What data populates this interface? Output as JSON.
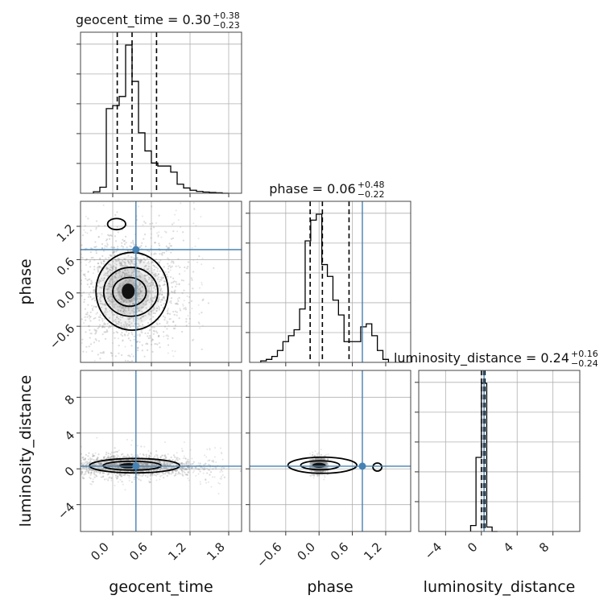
{
  "chart_data": {
    "type": "corner",
    "grid": true,
    "colors": {
      "truth": "#4682b4",
      "hist": "#000000",
      "quantile": "#000000",
      "samples": "#9a9a9a",
      "grid": "#b0b0b0"
    },
    "parameters": [
      {
        "key": "geocent_time",
        "label": "geocent_time",
        "range": [
          -0.5,
          2.0
        ],
        "ticks": [
          "0.0",
          "0.6",
          "1.2",
          "1.8"
        ],
        "tick_values": [
          0.0,
          0.6,
          1.2,
          1.8
        ],
        "truth": 0.36
      },
      {
        "key": "phase",
        "label": "phase",
        "range": [
          -1.25,
          1.65
        ],
        "ticks": [
          "−0.6",
          "0.0",
          "0.6",
          "1.2"
        ],
        "tick_values": [
          -0.6,
          0.0,
          0.6,
          1.2
        ],
        "truth": 0.78
      },
      {
        "key": "luminosity_distance",
        "label": "luminosity_distance",
        "range": [
          -7.0,
          11.0
        ],
        "ticks": [
          "−4",
          "0",
          "4",
          "8"
        ],
        "tick_values": [
          -4,
          0,
          4,
          8
        ],
        "truth": 0.3
      }
    ],
    "titles": [
      {
        "param": "geocent_time",
        "main": "geocent_time = 0.30",
        "plus": "+0.38",
        "minus": "−0.23"
      },
      {
        "param": "phase",
        "main": "phase = 0.06",
        "plus": "+0.48",
        "minus": "−0.22"
      },
      {
        "param": "luminosity_distance",
        "main": "luminosity_distance = 0.24",
        "plus": "+0.16",
        "minus": "−0.24"
      }
    ],
    "histograms": [
      {
        "param": "geocent_time",
        "bin_edges": [
          -0.3,
          -0.2,
          -0.1,
          0.0,
          0.1,
          0.2,
          0.3,
          0.4,
          0.5,
          0.6,
          0.7,
          0.8,
          0.9,
          1.0,
          1.1,
          1.2,
          1.3,
          1.4,
          1.5,
          1.6,
          1.7,
          1.8
        ],
        "counts": [
          0.01,
          0.04,
          0.56,
          0.58,
          0.64,
          0.98,
          0.74,
          0.4,
          0.28,
          0.2,
          0.18,
          0.18,
          0.14,
          0.06,
          0.035,
          0.02,
          0.012,
          0.008,
          0.005,
          0.003,
          0.0
        ],
        "quantiles": [
          0.07,
          0.3,
          0.68
        ]
      },
      {
        "param": "phase",
        "bin_edges": [
          -1.05,
          -0.95,
          -0.85,
          -0.75,
          -0.65,
          -0.55,
          -0.45,
          -0.35,
          -0.25,
          -0.15,
          -0.05,
          0.05,
          0.15,
          0.25,
          0.35,
          0.45,
          0.55,
          0.65,
          0.75,
          0.85,
          0.95,
          1.05,
          1.15,
          1.25
        ],
        "counts": [
          0.01,
          0.02,
          0.04,
          0.08,
          0.14,
          0.18,
          0.22,
          0.36,
          0.82,
          0.96,
          1.0,
          0.66,
          0.58,
          0.42,
          0.32,
          0.14,
          0.14,
          0.14,
          0.24,
          0.26,
          0.18,
          0.08,
          0.02
        ],
        "quantiles": [
          -0.16,
          0.06,
          0.54
        ]
      },
      {
        "param": "luminosity_distance",
        "bin_edges": [
          -1.2,
          -0.6,
          0.0,
          0.6,
          1.2,
          1.8
        ],
        "counts": [
          0.04,
          0.5,
          1.0,
          0.03,
          0.0
        ],
        "quantiles": [
          0.0,
          0.24,
          0.4
        ]
      }
    ],
    "contour_sets": [
      {
        "x": "geocent_time",
        "y": "phase",
        "levels": [
          {
            "cx": 0.26,
            "cy": 0.02,
            "rx": 0.26,
            "ry": 0.26
          },
          {
            "cx": 0.28,
            "cy": 0.02,
            "rx": 0.42,
            "ry": 0.44
          },
          {
            "cx": 0.3,
            "cy": 0.03,
            "rx": 0.56,
            "ry": 0.7
          },
          {
            "cx": 0.06,
            "cy": 1.24,
            "rx": 0.14,
            "ry": 0.1
          }
        ],
        "core": {
          "cx": 0.24,
          "cy": 0.03,
          "rx": 0.1,
          "ry": 0.14
        }
      },
      {
        "x": "geocent_time",
        "y": "luminosity_distance",
        "levels": [
          {
            "cx": 0.3,
            "cy": 0.35,
            "rx": 0.45,
            "ry": 0.5
          },
          {
            "cx": 0.34,
            "cy": 0.35,
            "rx": 0.7,
            "ry": 0.8
          }
        ],
        "core": {
          "cx": 0.25,
          "cy": 0.35,
          "rx": 0.15,
          "ry": 0.3
        }
      },
      {
        "x": "phase",
        "y": "luminosity_distance",
        "levels": [
          {
            "cx": 0.02,
            "cy": 0.4,
            "rx": 0.35,
            "ry": 0.5
          },
          {
            "cx": 0.06,
            "cy": 0.4,
            "rx": 0.62,
            "ry": 0.9
          },
          {
            "cx": 1.05,
            "cy": 0.2,
            "rx": 0.08,
            "ry": 0.45
          }
        ],
        "core": {
          "cx": 0.0,
          "cy": 0.4,
          "rx": 0.12,
          "ry": 0.28
        }
      }
    ]
  }
}
